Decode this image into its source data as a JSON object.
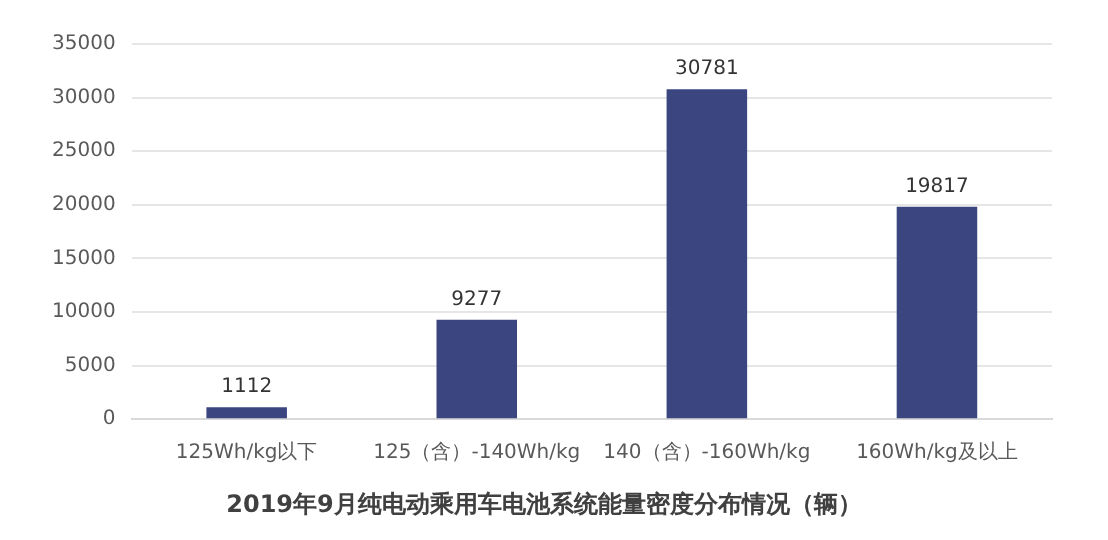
{
  "chart_data": {
    "type": "bar",
    "title": "2019年9月纯电动乘用车电池系统能量密度分布情况（辆）",
    "categories": [
      "125Wh/kg以下",
      "125（含）-140Wh/kg",
      "140（含）-160Wh/kg",
      "160Wh/kg及以上"
    ],
    "values": [
      1112,
      9277,
      30781,
      19817
    ],
    "color": "#3b4680",
    "ylim": [
      0,
      35000
    ],
    "yticks": [
      0,
      5000,
      10000,
      15000,
      20000,
      25000,
      30000,
      35000
    ],
    "grid": "y",
    "data_labels": true
  }
}
